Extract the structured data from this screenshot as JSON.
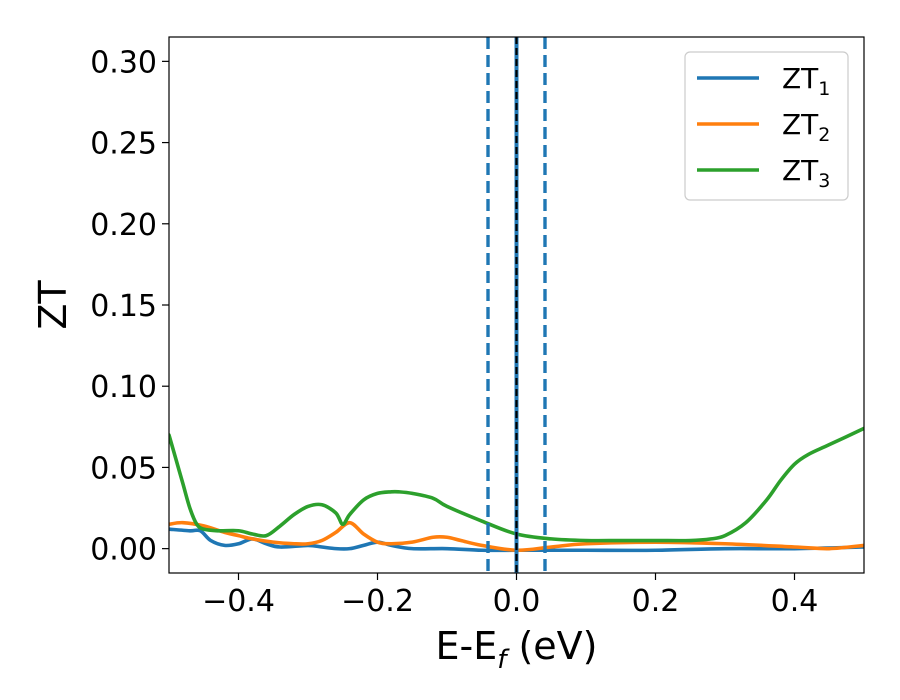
{
  "chart_data": {
    "type": "line",
    "xlabel": "E-E_f (eV)",
    "xlabel_main": "E-E",
    "xlabel_sub": "f",
    "xlabel_tail": " (eV)",
    "ylabel": "ZT",
    "xlim": [
      -0.5,
      0.5
    ],
    "ylim": [
      -0.015,
      0.315
    ],
    "xticks": [
      -0.4,
      -0.2,
      0.0,
      0.2,
      0.4
    ],
    "xtick_labels": [
      "−0.4",
      "−0.2",
      "0.0",
      "0.2",
      "0.4"
    ],
    "yticks": [
      0.0,
      0.05,
      0.1,
      0.15,
      0.2,
      0.25,
      0.3
    ],
    "ytick_labels": [
      "0.00",
      "0.05",
      "0.10",
      "0.15",
      "0.20",
      "0.25",
      "0.30"
    ],
    "grid": false,
    "legend_position": "top-right",
    "vlines": [
      {
        "x": -0.041,
        "style": "dashed",
        "color": "#1f77b4"
      },
      {
        "x": 0.041,
        "style": "dashed",
        "color": "#1f77b4"
      },
      {
        "x": 0.0,
        "style": "solid",
        "color": "#1f77b4"
      },
      {
        "x": 0.0,
        "style": "dashed",
        "color": "#000000"
      }
    ],
    "series": [
      {
        "name": "ZT_1",
        "label_main": "ZT",
        "label_sub": "1",
        "color": "#1f77b4",
        "x": [
          -0.5,
          -0.47,
          -0.455,
          -0.44,
          -0.42,
          -0.4,
          -0.38,
          -0.36,
          -0.34,
          -0.3,
          -0.28,
          -0.26,
          -0.24,
          -0.22,
          -0.2,
          -0.18,
          -0.15,
          -0.1,
          -0.05,
          0.0,
          0.05,
          0.1,
          0.2,
          0.3,
          0.4,
          0.5
        ],
        "y": [
          0.012,
          0.011,
          0.011,
          0.005,
          0.002,
          0.003,
          0.006,
          0.003,
          0.001,
          0.002,
          0.001,
          0.0,
          0.0,
          0.002,
          0.004,
          0.002,
          0.0,
          0.0,
          -0.001,
          -0.001,
          -0.001,
          -0.001,
          -0.001,
          0.0,
          0.0,
          0.001
        ]
      },
      {
        "name": "ZT_2",
        "label_main": "ZT",
        "label_sub": "2",
        "color": "#ff7f0e",
        "x": [
          -0.5,
          -0.48,
          -0.45,
          -0.42,
          -0.4,
          -0.38,
          -0.35,
          -0.32,
          -0.3,
          -0.28,
          -0.26,
          -0.24,
          -0.22,
          -0.2,
          -0.18,
          -0.15,
          -0.12,
          -0.1,
          -0.08,
          -0.05,
          0.0,
          0.05,
          0.1,
          0.2,
          0.3,
          0.4,
          0.45,
          0.5
        ],
        "y": [
          0.015,
          0.016,
          0.014,
          0.01,
          0.008,
          0.006,
          0.004,
          0.003,
          0.003,
          0.005,
          0.01,
          0.016,
          0.009,
          0.004,
          0.003,
          0.004,
          0.007,
          0.007,
          0.005,
          0.002,
          -0.001,
          0.001,
          0.003,
          0.004,
          0.003,
          0.001,
          0.0,
          0.002
        ]
      },
      {
        "name": "ZT_3",
        "label_main": "ZT",
        "label_sub": "3",
        "color": "#2ca02c",
        "x": [
          -0.5,
          -0.49,
          -0.48,
          -0.47,
          -0.46,
          -0.45,
          -0.43,
          -0.4,
          -0.38,
          -0.36,
          -0.34,
          -0.32,
          -0.3,
          -0.28,
          -0.26,
          -0.25,
          -0.24,
          -0.22,
          -0.2,
          -0.18,
          -0.17,
          -0.15,
          -0.12,
          -0.1,
          -0.05,
          0.0,
          0.05,
          0.1,
          0.15,
          0.2,
          0.25,
          0.28,
          0.3,
          0.33,
          0.36,
          0.38,
          0.4,
          0.42,
          0.45,
          0.5
        ],
        "y": [
          0.07,
          0.055,
          0.04,
          0.025,
          0.015,
          0.012,
          0.011,
          0.011,
          0.009,
          0.008,
          0.014,
          0.021,
          0.026,
          0.027,
          0.022,
          0.015,
          0.021,
          0.03,
          0.034,
          0.035,
          0.035,
          0.034,
          0.031,
          0.026,
          0.017,
          0.009,
          0.006,
          0.005,
          0.005,
          0.005,
          0.005,
          0.006,
          0.008,
          0.016,
          0.03,
          0.042,
          0.052,
          0.058,
          0.064,
          0.074
        ]
      }
    ]
  }
}
